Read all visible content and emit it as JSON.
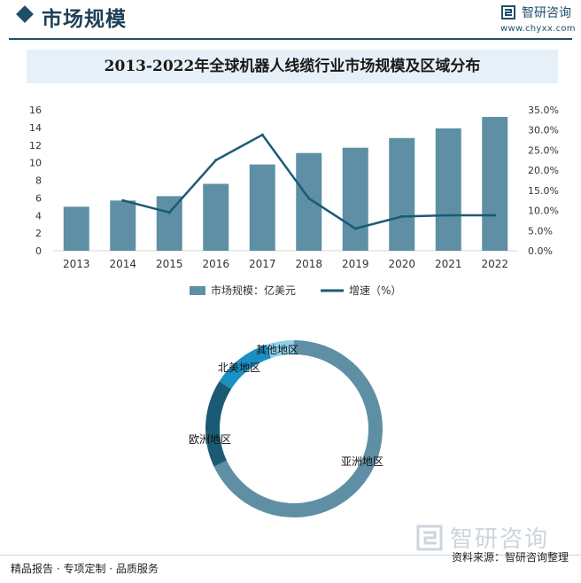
{
  "header": {
    "section_title": "市场规模",
    "brand_name": "智研咨询",
    "brand_url": "www.chyxx.com"
  },
  "chart_data": [
    {
      "type": "bar",
      "title": "2013-2022年全球机器人线缆行业市场规模及区域分布",
      "categories": [
        "2013",
        "2014",
        "2015",
        "2016",
        "2017",
        "2018",
        "2019",
        "2020",
        "2021",
        "2022"
      ],
      "series": [
        {
          "name": "市场规模：亿美元",
          "type": "bar",
          "axis": "left",
          "values": [
            5.0,
            5.7,
            6.2,
            7.6,
            9.8,
            11.1,
            11.7,
            12.8,
            13.9,
            15.2
          ]
        },
        {
          "name": "增速（%）",
          "type": "line",
          "axis": "right",
          "values": [
            null,
            12.5,
            9.5,
            22.5,
            28.8,
            13.0,
            5.5,
            8.5,
            8.8,
            8.8
          ]
        }
      ],
      "y_left": {
        "ticks": [
          "0",
          "2",
          "4",
          "6",
          "8",
          "10",
          "12",
          "14",
          "16"
        ],
        "lim": [
          0,
          16
        ]
      },
      "y_right": {
        "ticks": [
          "0.0%",
          "5.0%",
          "10.0%",
          "15.0%",
          "20.0%",
          "25.0%",
          "30.0%",
          "35.0%"
        ],
        "lim": [
          0,
          35
        ]
      },
      "legend_position": "bottom",
      "colors": {
        "bar": "#5e8fa5",
        "line": "#1b5a74"
      }
    },
    {
      "type": "pie",
      "style": "donut",
      "labels": [
        "亚洲地区",
        "欧洲地区",
        "北美地区",
        "其他地区"
      ],
      "values": [
        68,
        16,
        11,
        5
      ],
      "colors": [
        "#5e8fa5",
        "#1b5a74",
        "#1b8fc2",
        "#8cd0ea"
      ]
    }
  ],
  "footer": {
    "left_text": "精品报告 · 专项定制 · 品质服务",
    "source_text": "资料来源：智研咨询整理",
    "watermark_text": "智研咨询"
  }
}
